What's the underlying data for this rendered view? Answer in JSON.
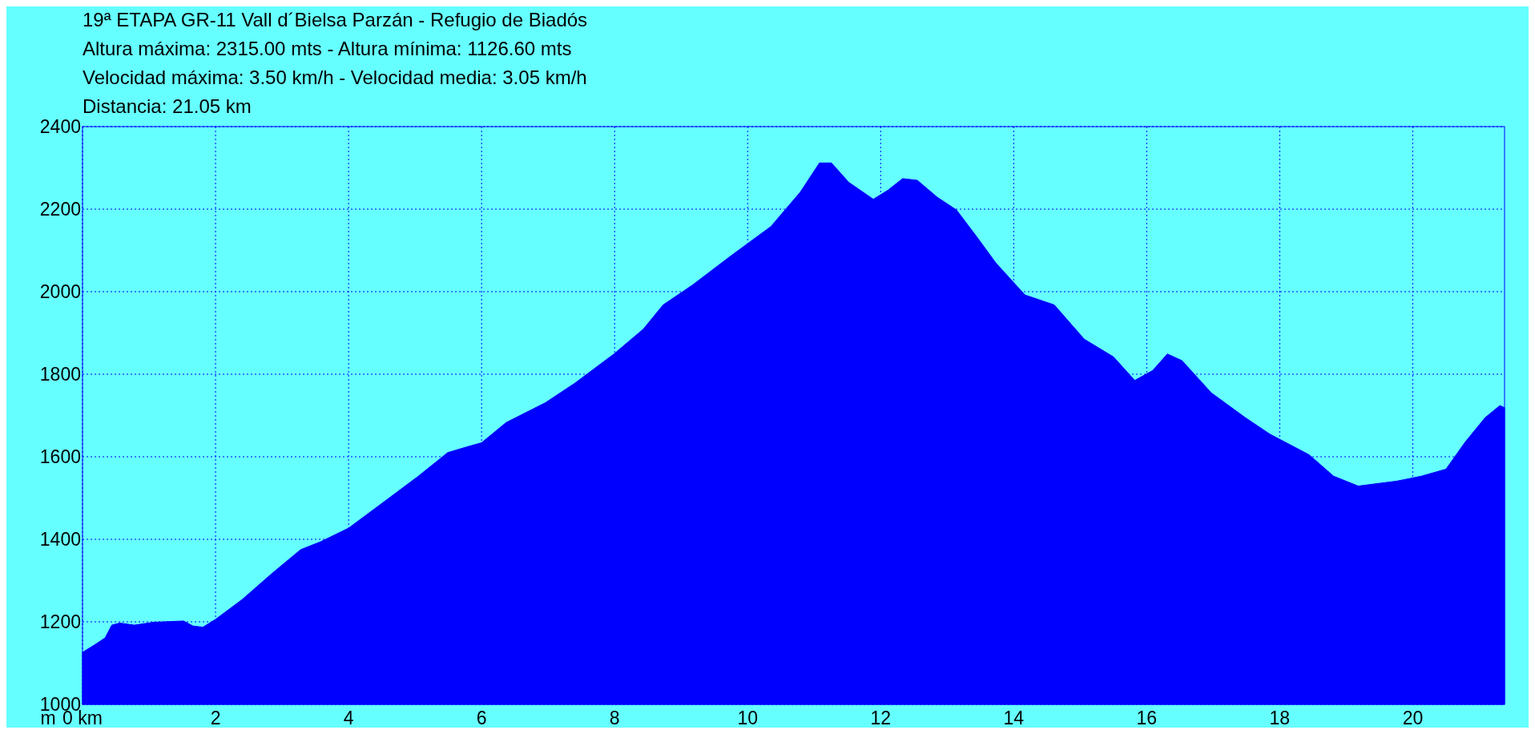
{
  "chart_data": {
    "type": "area",
    "title": "19ª ETAPA GR-11 Vall d´Bielsa Parzán - Refugio de Biadós",
    "annotations": [
      "Altura máxima: 2315.00 mts - Altura mínima: 1126.60 mts",
      "Velocidad máxima: 3.50 km/h - Velocidad media: 3.05 km/h",
      "Distancia: 21.05 km"
    ],
    "ylabel": "m",
    "x": [
      0,
      0.19,
      0.34,
      0.44,
      0.56,
      0.78,
      1.07,
      1.52,
      1.66,
      1.81,
      2.0,
      2.4,
      2.84,
      3.28,
      3.58,
      4.0,
      4.46,
      5.05,
      5.49,
      5.78,
      6.0,
      6.37,
      6.96,
      7.4,
      7.99,
      8.43,
      8.73,
      9.17,
      9.75,
      10.35,
      10.79,
      11.08,
      11.26,
      11.52,
      11.89,
      12.11,
      12.33,
      12.55,
      12.85,
      13.14,
      13.44,
      13.73,
      14.17,
      14.61,
      15.06,
      15.5,
      15.82,
      16.09,
      16.31,
      16.53,
      16.97,
      17.48,
      17.85,
      18.44,
      18.81,
      19.18,
      19.76,
      20.13,
      20.5,
      20.79,
      21.09,
      21.31,
      21.38
    ],
    "series": [
      {
        "color": "#0000ff",
        "values": [
          1126,
          1145,
          1161,
          1192,
          1197,
          1192,
          1199,
          1202,
          1190,
          1187,
          1206,
          1254,
          1316,
          1375,
          1394,
          1427,
          1482,
          1553,
          1610,
          1624,
          1634,
          1683,
          1731,
          1778,
          1849,
          1909,
          1968,
          2016,
          2087,
          2158,
          2241,
          2312,
          2312,
          2265,
          2224,
          2246,
          2274,
          2270,
          2229,
          2198,
          2134,
          2070,
          1992,
          1968,
          1885,
          1842,
          1785,
          1809,
          1849,
          1833,
          1755,
          1695,
          1655,
          1605,
          1553,
          1529,
          1541,
          1553,
          1570,
          1636,
          1695,
          1724,
          1719
        ]
      }
    ],
    "xlim": [
      0,
      21.38
    ],
    "xticks": [
      {
        "value": 0,
        "label": "0 km"
      },
      2,
      4,
      6,
      8,
      10,
      12,
      14,
      16,
      18,
      20
    ],
    "ylim": [
      1000,
      2400
    ],
    "yticks": [
      1000,
      1200,
      1400,
      1600,
      1800,
      2000,
      2200,
      2400
    ],
    "grid": true
  }
}
